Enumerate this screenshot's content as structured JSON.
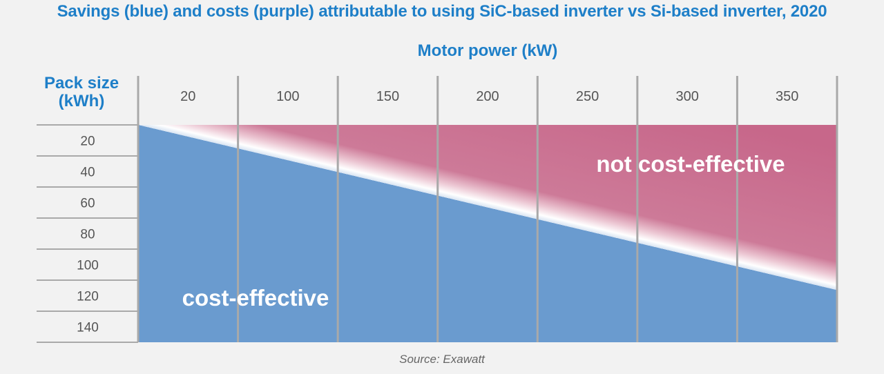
{
  "title": "Savings (blue) and costs (purple) attributable to using SiC-based inverter vs Si-based inverter, 2020",
  "source": "Source: Exawatt",
  "colors": {
    "title": "#1e7fc8",
    "savings": "#6a9bcf",
    "costs": "#c7678a",
    "boundary": "#ffffff",
    "background": "#f2f2f2"
  },
  "chart_data": {
    "type": "heatmap",
    "title": "Savings (blue) and costs (purple) attributable to using SiC-based inverter vs Si-based inverter, 2020",
    "xlabel": "Motor power (kW)",
    "ylabel": "Pack size (kWh)",
    "x_categories": [
      "20",
      "100",
      "150",
      "200",
      "250",
      "300",
      "350"
    ],
    "y_categories": [
      "20",
      "40",
      "60",
      "80",
      "100",
      "120",
      "140"
    ],
    "regions": [
      {
        "label": "not cost-effective",
        "meaning": "costs",
        "color": "#c7678a"
      },
      {
        "label": "cost-effective",
        "meaning": "savings",
        "color": "#6a9bcf"
      }
    ],
    "boundary_approx": [
      {
        "motor_power_kW": 20,
        "pack_size_kWh": 20
      },
      {
        "motor_power_kW": 350,
        "pack_size_kWh": 100
      }
    ]
  }
}
